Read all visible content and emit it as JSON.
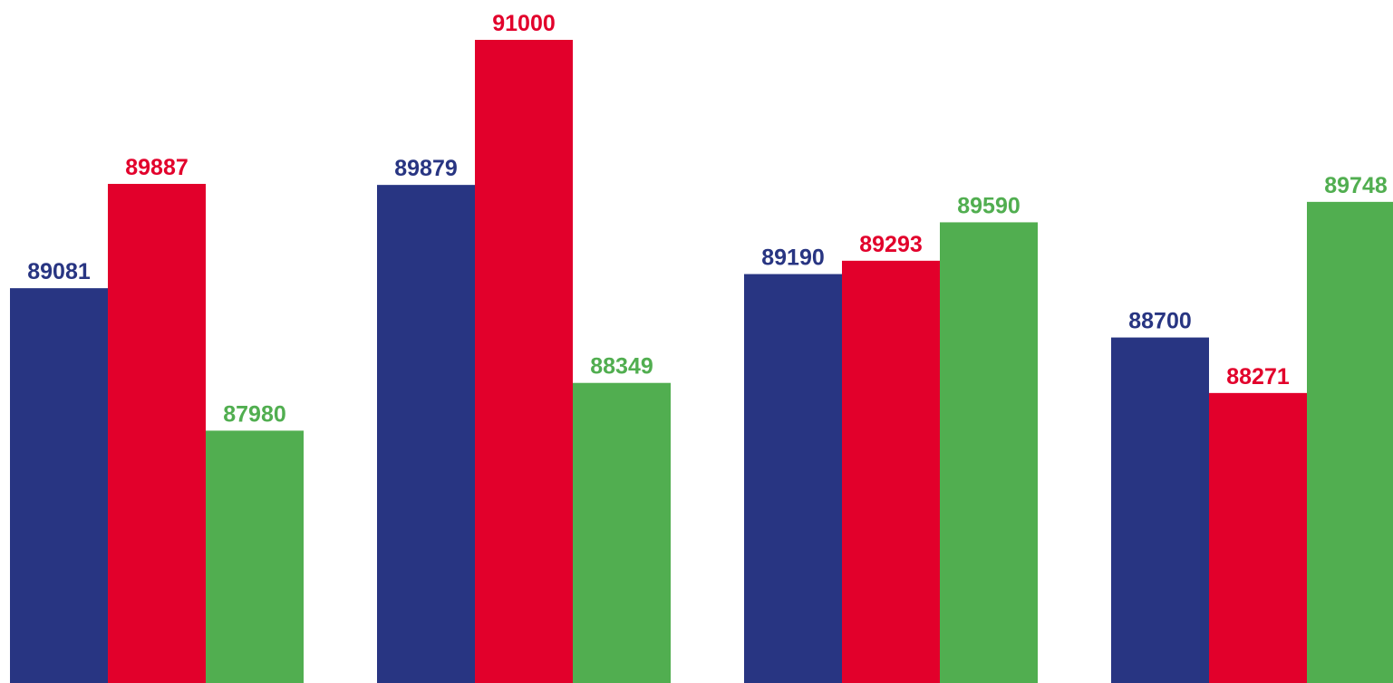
{
  "chart_data": {
    "type": "bar",
    "title": "",
    "xlabel": "",
    "ylabel": "",
    "categories": [
      "",
      "",
      "",
      ""
    ],
    "series": [
      {
        "color": "#283582",
        "values": [
          89081,
          89879,
          89190,
          88700
        ]
      },
      {
        "color": "#E2002B",
        "values": [
          89887,
          91000,
          89293,
          88271
        ]
      },
      {
        "color": "#51AE50",
        "values": [
          87980,
          88349,
          89590,
          89748
        ]
      }
    ],
    "grid": false,
    "legend": "none"
  }
}
